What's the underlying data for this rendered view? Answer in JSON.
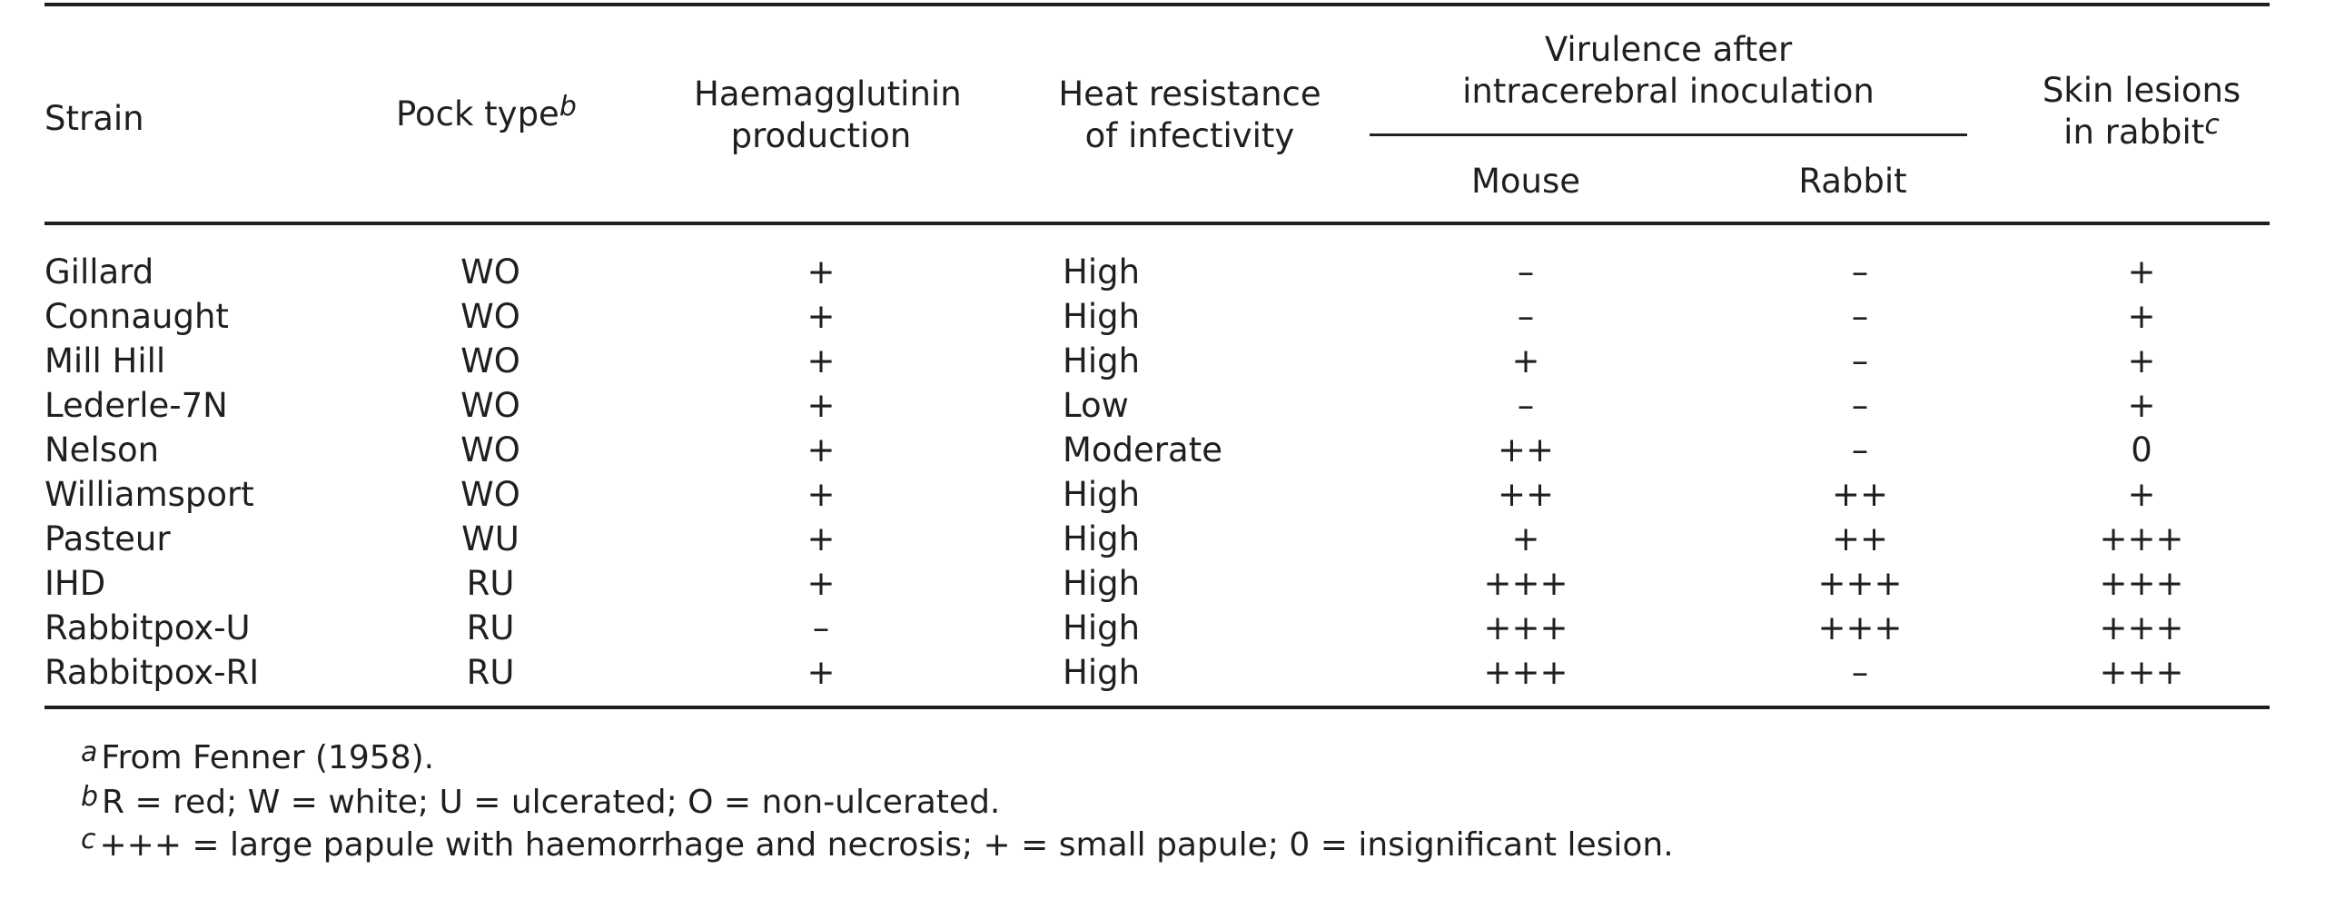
{
  "headers": {
    "strain": "Strain",
    "pock_type": "Pock type",
    "pock_type_note": "b",
    "haem_line1": "Haemagglutinin",
    "haem_line2": "production",
    "heat_line1": "Heat resistance",
    "heat_line2": "of infectivity",
    "virulence_line1": "Virulence after",
    "virulence_line2": "intracerebral inoculation",
    "mouse": "Mouse",
    "rabbit": "Rabbit",
    "skin_line1": "Skin lesions",
    "skin_line2": "in rabbit",
    "skin_note": "c"
  },
  "rows": [
    {
      "strain": "Gillard",
      "pock": "WO",
      "haem": "+",
      "heat": "High",
      "mouse": "–",
      "rabbit": "–",
      "skin": "+"
    },
    {
      "strain": "Connaught",
      "pock": "WO",
      "haem": "+",
      "heat": "High",
      "mouse": "–",
      "rabbit": "–",
      "skin": "+"
    },
    {
      "strain": "Mill Hill",
      "pock": "WO",
      "haem": "+",
      "heat": "High",
      "mouse": "+",
      "rabbit": "–",
      "skin": "+"
    },
    {
      "strain": "Lederle-7N",
      "pock": "WO",
      "haem": "+",
      "heat": "Low",
      "mouse": "–",
      "rabbit": "–",
      "skin": "+"
    },
    {
      "strain": "Nelson",
      "pock": "WO",
      "haem": "+",
      "heat": "Moderate",
      "mouse": "++",
      "rabbit": "–",
      "skin": "0"
    },
    {
      "strain": "Williamsport",
      "pock": "WO",
      "haem": "+",
      "heat": "High",
      "mouse": "++",
      "rabbit": "++",
      "skin": "+"
    },
    {
      "strain": "Pasteur",
      "pock": "WU",
      "haem": "+",
      "heat": "High",
      "mouse": "+",
      "rabbit": "++",
      "skin": "+++"
    },
    {
      "strain": "IHD",
      "pock": "RU",
      "haem": "+",
      "heat": "High",
      "mouse": "+++",
      "rabbit": "+++",
      "skin": "+++"
    },
    {
      "strain": "Rabbitpox-U",
      "pock": "RU",
      "haem": "–",
      "heat": "High",
      "mouse": "+++",
      "rabbit": "+++",
      "skin": "+++"
    },
    {
      "strain": "Rabbitpox-RI",
      "pock": "RU",
      "haem": "+",
      "heat": "High",
      "mouse": "+++",
      "rabbit": "–",
      "skin": "+++"
    }
  ],
  "footnotes": [
    {
      "mark": "a",
      "text": "From Fenner (1958)."
    },
    {
      "mark": "b",
      "text": "R = red; W = white; U = ulcerated; O = non-ulcerated."
    },
    {
      "mark": "c",
      "text": "+++ = large papule with haemorrhage and necrosis; + = small papule; 0 = insignificant lesion."
    }
  ]
}
